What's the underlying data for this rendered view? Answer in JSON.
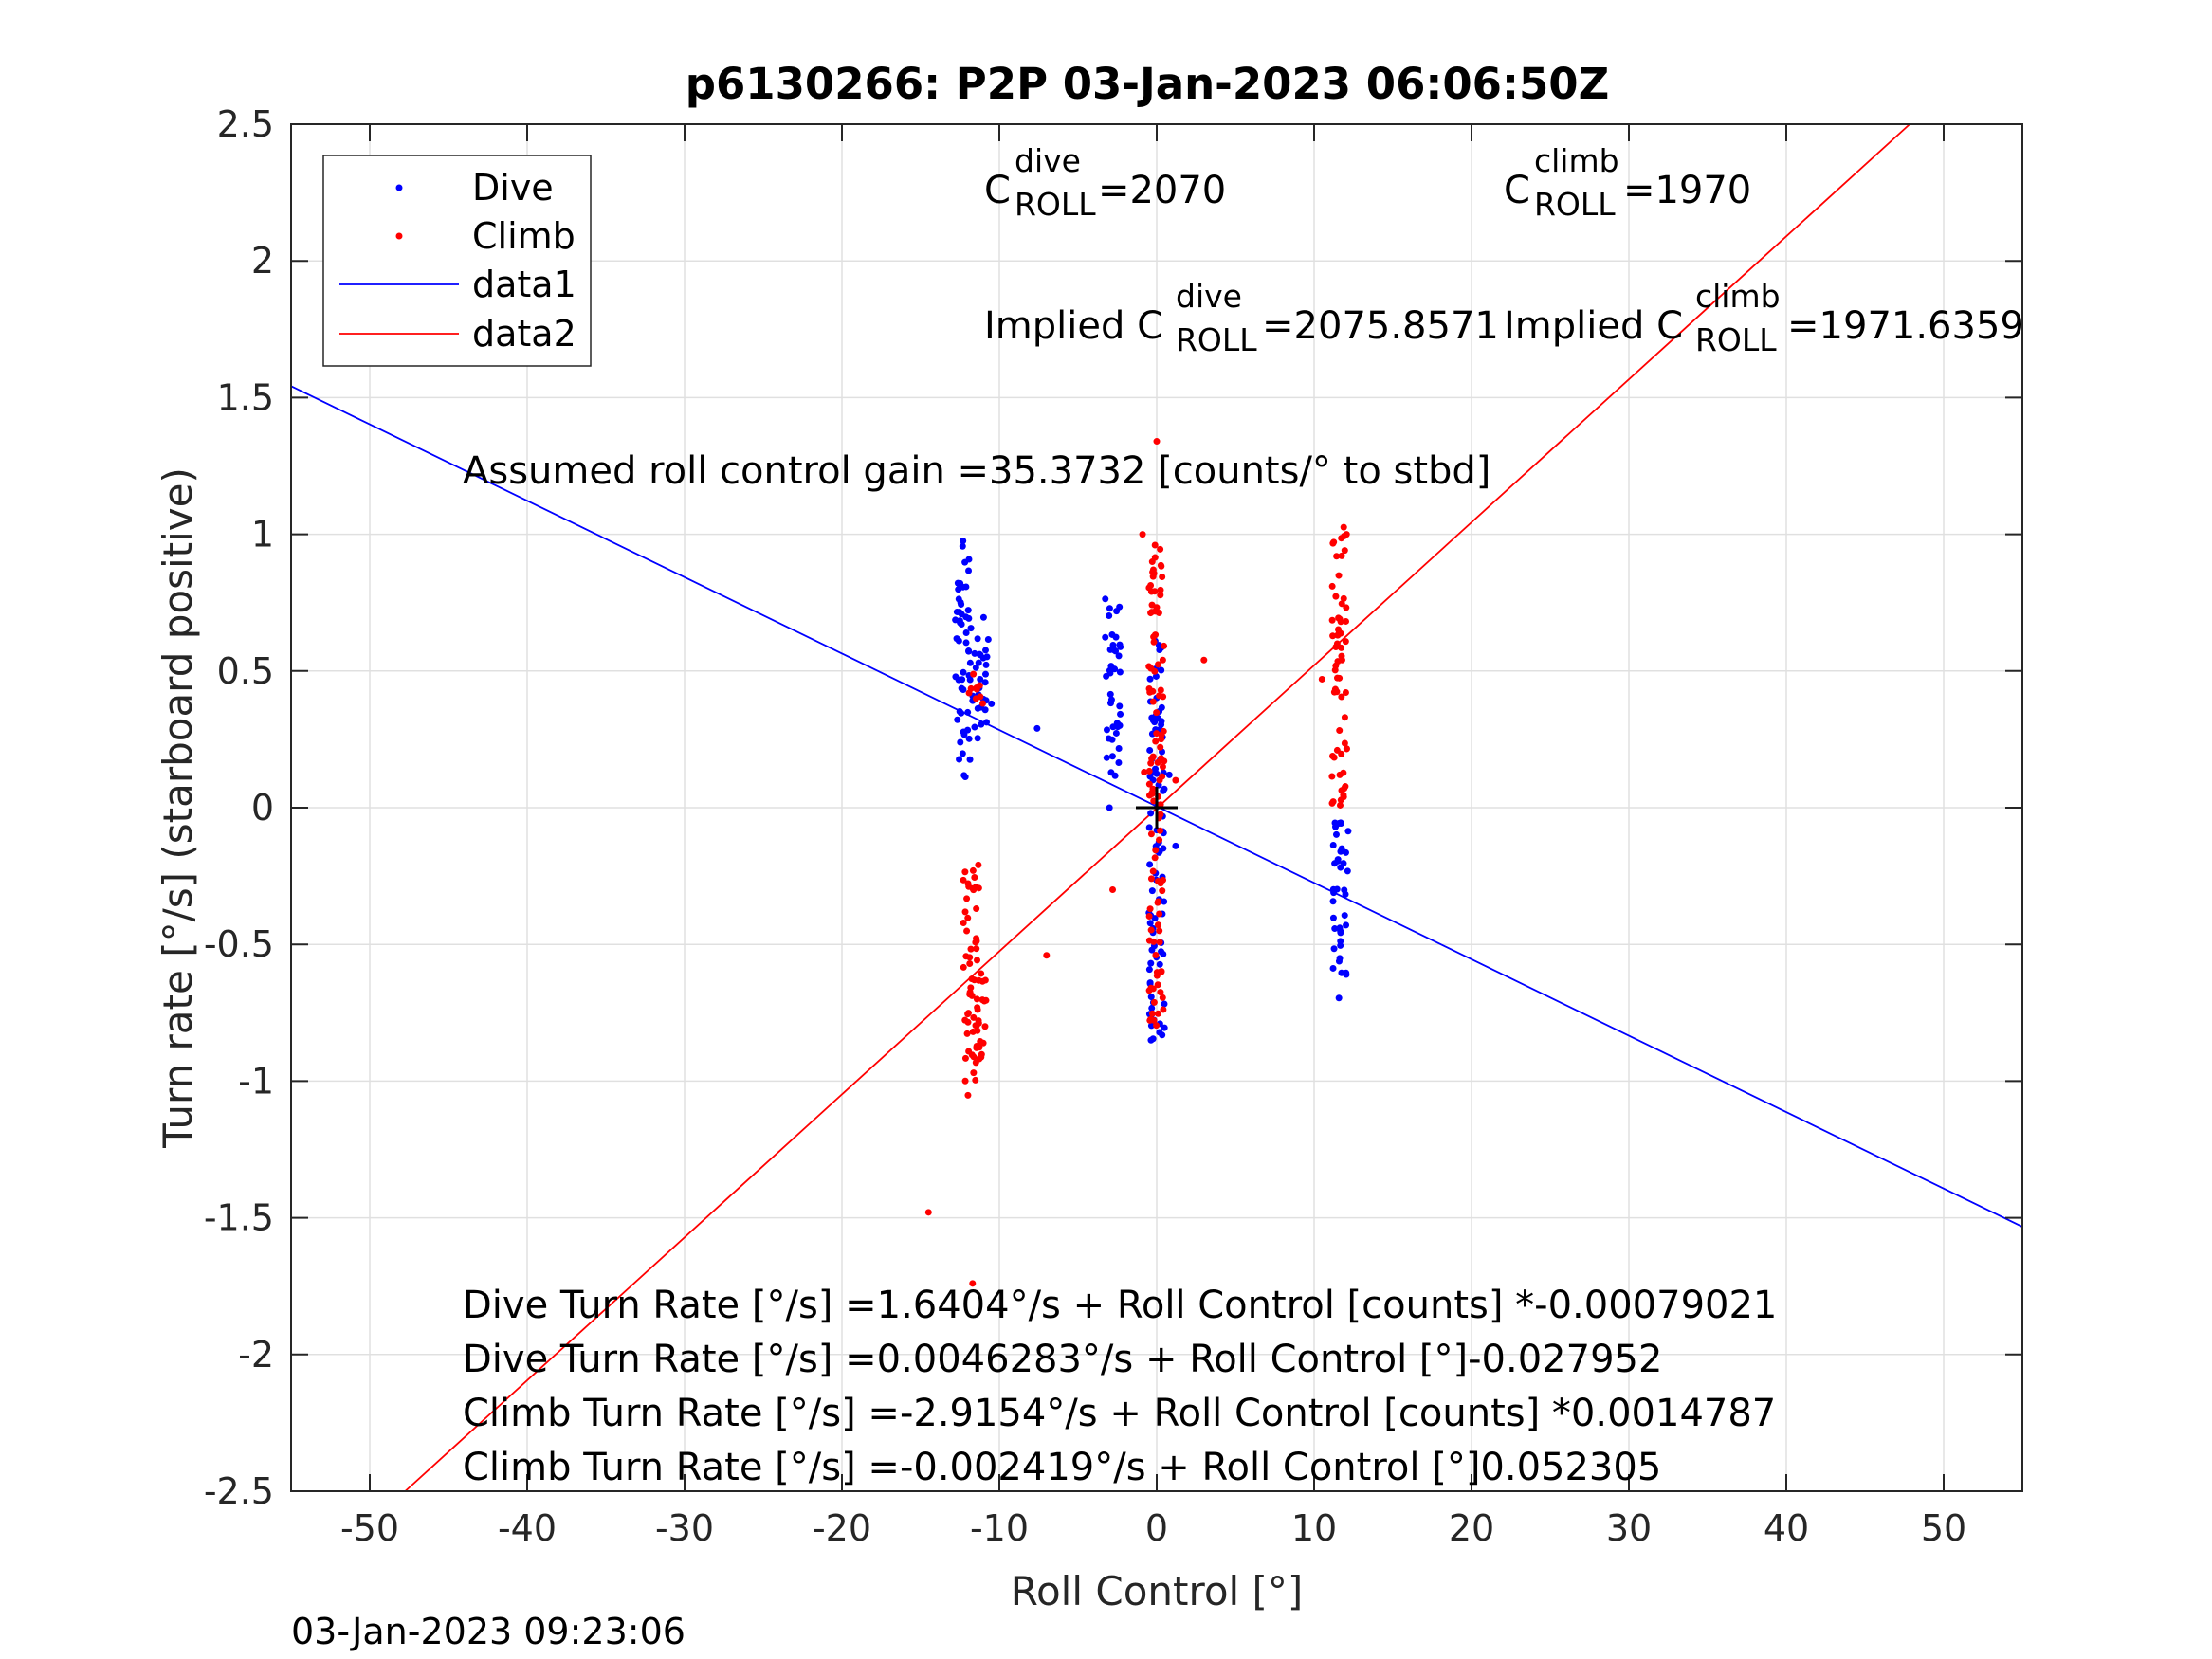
{
  "chart_data": {
    "type": "scatter",
    "title": "p6130266: P2P 03-Jan-2023 06:06:50Z",
    "xlabel": "Roll Control [°]",
    "ylabel": "Turn rate [°/s] (starboard positive)",
    "xlim": [
      -55,
      55
    ],
    "ylim": [
      -2.5,
      2.5
    ],
    "xticks": [
      -50,
      -40,
      -30,
      -20,
      -10,
      0,
      10,
      20,
      30,
      40,
      50
    ],
    "xtick_labels": [
      "-50",
      "-40",
      "-30",
      "-20",
      "-10",
      "0",
      "10",
      "20",
      "30",
      "40",
      "50"
    ],
    "yticks": [
      -2.5,
      -2,
      -1.5,
      -1,
      -0.5,
      0,
      0.5,
      1,
      1.5,
      2,
      2.5
    ],
    "ytick_labels": [
      "-2.5",
      "-2",
      "-1.5",
      "-1",
      "-0.5",
      "0",
      "0.5",
      "1",
      "1.5",
      "2",
      "2.5"
    ],
    "grid": true,
    "legend": {
      "position": "top-left",
      "entries": [
        {
          "label": "Dive",
          "style": "dot",
          "color": "#0000ff"
        },
        {
          "label": "Climb",
          "style": "dot",
          "color": "#ff0000"
        },
        {
          "label": "data1",
          "style": "line",
          "color": "#0000ff"
        },
        {
          "label": "data2",
          "style": "line",
          "color": "#ff0000"
        }
      ]
    },
    "series": [
      {
        "name": "Dive",
        "color": "#0000ff",
        "clusters": [
          {
            "x": -12.3,
            "y_min": 0.1,
            "y_max": 0.98
          },
          {
            "x": -11.2,
            "y_min": 0.25,
            "y_max": 0.71
          },
          {
            "x": -2.8,
            "y_min": 0.1,
            "y_max": 0.78
          },
          {
            "x": 0.0,
            "y_min": -0.87,
            "y_max": 0.62
          },
          {
            "x": 11.7,
            "y_min": -0.7,
            "y_max": -0.03
          }
        ],
        "points": [
          {
            "x": -10.5,
            "y": 0.38
          },
          {
            "x": -7.6,
            "y": 0.29
          },
          {
            "x": -3.0,
            "y": 0.0
          },
          {
            "x": 1.2,
            "y": -0.14
          },
          {
            "x": 0.8,
            "y": 0.12
          }
        ]
      },
      {
        "name": "Climb",
        "color": "#ff0000",
        "clusters": [
          {
            "x": -11.8,
            "y_min": -1.06,
            "y_max": -0.2
          },
          {
            "x": -11.3,
            "y_min": -0.95,
            "y_max": -0.6
          },
          {
            "x": 0.0,
            "y_min": -0.8,
            "y_max": 1.0
          },
          {
            "x": 11.6,
            "y_min": 0.0,
            "y_max": 1.03
          },
          {
            "x": -11.5,
            "y_min": 0.35,
            "y_max": 0.5
          }
        ],
        "points": [
          {
            "x": -14.5,
            "y": -1.48
          },
          {
            "x": -11.7,
            "y": -1.74
          },
          {
            "x": -7.0,
            "y": -0.54
          },
          {
            "x": -2.8,
            "y": -0.3
          },
          {
            "x": -0.9,
            "y": 1.0
          },
          {
            "x": 3.0,
            "y": 0.54
          },
          {
            "x": 0.0,
            "y": 1.34
          },
          {
            "x": 10.5,
            "y": 0.47
          },
          {
            "x": 1.2,
            "y": 0.1
          },
          {
            "x": -0.8,
            "y": 0.13
          }
        ]
      },
      {
        "name": "data1",
        "color": "#0000ff",
        "type": "line",
        "intercept": 0.0046283,
        "slope": -0.027952
      },
      {
        "name": "data2",
        "color": "#ff0000",
        "type": "line",
        "intercept": -0.002419,
        "slope": 0.052305
      }
    ],
    "annotations": {
      "c_dive_base": "C",
      "c_dive_sup": "dive",
      "c_dive_sub": "ROLL",
      "c_dive_value": "=2070",
      "c_climb_base": "C",
      "c_climb_sup": "climb",
      "c_climb_sub": "ROLL",
      "c_climb_value": "=1970",
      "implied_dive_prefix": "Implied C",
      "implied_dive_sup": "dive",
      "implied_dive_sub": "ROLL",
      "implied_dive_value": "=2075.8571",
      "implied_climb_prefix": "Implied C",
      "implied_climb_sup": "climb",
      "implied_climb_sub": "ROLL",
      "implied_climb_value": "=1971.6359",
      "gain": "Assumed roll control gain =35.3732 [counts/° to stbd]",
      "eq1": "Dive Turn Rate [°/s] =1.6404°/s + Roll Control [counts] *-0.00079021",
      "eq2": "Dive Turn Rate [°/s] =0.0046283°/s + Roll Control [°]-0.027952",
      "eq3": "Climb Turn Rate [°/s] =-2.9154°/s + Roll Control [counts] *0.0014787",
      "eq4": "Climb Turn Rate [°/s] =-0.002419°/s + Roll Control [°]0.052305"
    },
    "marker": {
      "x": 0,
      "y": 0,
      "symbol": "+"
    }
  },
  "footer_timestamp": "03-Jan-2023 09:23:06"
}
